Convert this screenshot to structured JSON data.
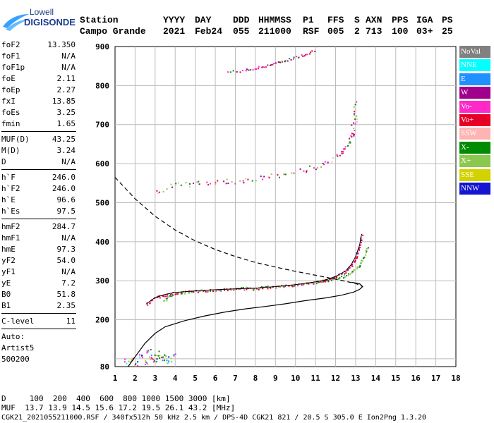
{
  "logo": {
    "line1": "Lowell",
    "line2": "DIGISONDE"
  },
  "header": {
    "labels": [
      "Station",
      "YYYY",
      "DAY",
      "DDD",
      "HHMMSS",
      "P1",
      "FFS",
      "S",
      "AXN",
      "PPS",
      "IGA",
      "PS"
    ],
    "values": [
      "Campo Grande",
      "2021",
      "Feb24",
      "055",
      "211000",
      "RSF",
      "005",
      "2",
      "713",
      "100",
      "03+",
      "25"
    ]
  },
  "params": {
    "g1": [
      {
        "name": "foF2",
        "value": "13.350"
      },
      {
        "name": "foF1",
        "value": "N/A"
      },
      {
        "name": "foF1p",
        "value": "N/A"
      },
      {
        "name": "foE",
        "value": "2.11"
      },
      {
        "name": "foEp",
        "value": "2.27"
      },
      {
        "name": "fxI",
        "value": "13.85"
      },
      {
        "name": "foEs",
        "value": "3.25"
      },
      {
        "name": "fmin",
        "value": "1.65"
      }
    ],
    "g2": [
      {
        "name": "MUF(D)",
        "value": "43.25"
      },
      {
        "name": "M(D)",
        "value": "3.24"
      },
      {
        "name": "D",
        "value": "N/A"
      }
    ],
    "g3": [
      {
        "name": "h`F",
        "value": "246.0"
      },
      {
        "name": "h`F2",
        "value": "246.0"
      },
      {
        "name": "h`E",
        "value": "96.6"
      },
      {
        "name": "h`Es",
        "value": "97.5"
      }
    ],
    "g4": [
      {
        "name": "hmF2",
        "value": "284.7"
      },
      {
        "name": "hmF1",
        "value": "N/A"
      },
      {
        "name": "hmE",
        "value": "97.3"
      },
      {
        "name": "yF2",
        "value": "54.0"
      },
      {
        "name": "yF1",
        "value": "N/A"
      },
      {
        "name": "yE",
        "value": "7.2"
      },
      {
        "name": "B0",
        "value": "51.8"
      },
      {
        "name": "B1",
        "value": "2.35"
      }
    ],
    "clevel": {
      "name": "C-level",
      "value": "11"
    },
    "auto": [
      "Auto:",
      "Artist5",
      "500200"
    ]
  },
  "legend": [
    {
      "label": "NoVal",
      "color": "#808080",
      "text": "#ffffff"
    },
    {
      "label": "NNE",
      "color": "#00ffff",
      "text": "#ffffff"
    },
    {
      "label": "E",
      "color": "#1e90ff",
      "text": "#ffffff"
    },
    {
      "label": "W",
      "color": "#a0008c",
      "text": "#ffffff"
    },
    {
      "label": "Vo-",
      "color": "#ff28c8",
      "text": "#ffffff"
    },
    {
      "label": "Vo+",
      "color": "#e60028",
      "text": "#ffffff"
    },
    {
      "label": "SSW",
      "color": "#ffb4b4",
      "text": "#ffffff"
    },
    {
      "label": "X-",
      "color": "#008c00",
      "text": "#ffffff"
    },
    {
      "label": "X+",
      "color": "#8cc850",
      "text": "#ffffff"
    },
    {
      "label": "SSE",
      "color": "#d2d200",
      "text": "#ffffff"
    },
    {
      "label": "NNW",
      "color": "#1414d2",
      "text": "#ffffff"
    }
  ],
  "footer": {
    "line1": "D     100  200  400  600  800 1000 1500 3000 [km]",
    "line2": "MUF  13.7 13.9 14.5 15.6 17.2 19.5 26.1 43.2 [MHz]",
    "line3": "CGK21_2021055211000.RSF / 340fx512h 50 kHz 2.5 km / DPS-4D CGK21 821 / 20.5 S 305.0 E Ion2Png 1.3.20"
  },
  "chart_data": {
    "type": "scatter",
    "xlim": [
      1,
      18
    ],
    "ylim": [
      80,
      900
    ],
    "x_ticks": [
      1,
      2,
      3,
      4,
      5,
      6,
      7,
      8,
      9,
      10,
      11,
      12,
      13,
      14,
      15,
      16,
      17,
      18
    ],
    "y_ticks": [
      80,
      200,
      300,
      400,
      500,
      600,
      700,
      800,
      900
    ],
    "grid": true,
    "profile_curve": [
      [
        1.65,
        80
      ],
      [
        2.0,
        105
      ],
      [
        2.5,
        140
      ],
      [
        3.0,
        165
      ],
      [
        3.5,
        182
      ],
      [
        4.5,
        198
      ],
      [
        5.5,
        210
      ],
      [
        6.5,
        220
      ],
      [
        7.5,
        228
      ],
      [
        8.5,
        234
      ],
      [
        9.5,
        241
      ],
      [
        10.5,
        249
      ],
      [
        11.5,
        256
      ],
      [
        12.3,
        263
      ],
      [
        12.9,
        271
      ],
      [
        13.2,
        278
      ],
      [
        13.35,
        285
      ],
      [
        13.2,
        292
      ],
      [
        12.8,
        296
      ]
    ],
    "extrapolated_curve": [
      [
        1.0,
        565
      ],
      [
        2.0,
        510
      ],
      [
        3.0,
        465
      ],
      [
        4.0,
        430
      ],
      [
        5.0,
        402
      ],
      [
        6.0,
        380
      ],
      [
        7.0,
        362
      ],
      [
        8.0,
        347
      ],
      [
        9.0,
        335
      ],
      [
        10.0,
        324
      ],
      [
        11.0,
        314
      ],
      [
        12.0,
        304
      ],
      [
        13.0,
        293
      ],
      [
        13.35,
        285
      ]
    ],
    "o_trace": [
      [
        2.55,
        240
      ],
      [
        3.0,
        257
      ],
      [
        3.5,
        265
      ],
      [
        4.0,
        270
      ],
      [
        5.0,
        274
      ],
      [
        6.0,
        277
      ],
      [
        7.0,
        279
      ],
      [
        8.0,
        281
      ],
      [
        9.0,
        285
      ],
      [
        10.0,
        290
      ],
      [
        11.0,
        297
      ],
      [
        11.5,
        302
      ],
      [
        12.0,
        311
      ],
      [
        12.5,
        325
      ],
      [
        12.8,
        343
      ],
      [
        13.0,
        362
      ],
      [
        13.2,
        392
      ],
      [
        13.3,
        420
      ]
    ],
    "x_trace": [
      [
        3.4,
        250
      ],
      [
        3.8,
        265
      ],
      [
        4.5,
        272
      ],
      [
        5.5,
        276
      ],
      [
        6.5,
        279
      ],
      [
        7.5,
        282
      ],
      [
        8.5,
        285
      ],
      [
        9.5,
        289
      ],
      [
        10.5,
        294
      ],
      [
        11.5,
        301
      ],
      [
        12.2,
        309
      ],
      [
        12.7,
        320
      ],
      [
        13.1,
        337
      ],
      [
        13.4,
        360
      ],
      [
        13.6,
        390
      ]
    ],
    "o_second_hop": [
      [
        3.0,
        530
      ],
      [
        4.0,
        545
      ],
      [
        5.0,
        550
      ],
      [
        6.0,
        554
      ],
      [
        7.0,
        557
      ],
      [
        8.0,
        562
      ],
      [
        9.0,
        570
      ],
      [
        10.0,
        580
      ],
      [
        11.0,
        592
      ],
      [
        11.8,
        610
      ],
      [
        12.3,
        630
      ],
      [
        12.6,
        650
      ],
      [
        12.8,
        675
      ],
      [
        12.9,
        700
      ],
      [
        13.0,
        730
      ],
      [
        13.05,
        765
      ]
    ],
    "third_hop": [
      [
        6.6,
        836
      ],
      [
        7.5,
        840
      ],
      [
        8.0,
        845
      ],
      [
        8.5,
        852
      ],
      [
        9.0,
        858
      ],
      [
        9.5,
        866
      ],
      [
        10.0,
        874
      ],
      [
        10.5,
        882
      ],
      [
        11.0,
        892
      ]
    ],
    "es_cluster": [
      [
        1.6,
        95
      ],
      [
        1.9,
        100
      ],
      [
        2.0,
        88
      ],
      [
        2.3,
        110
      ],
      [
        2.5,
        92
      ],
      [
        2.6,
        120
      ],
      [
        2.8,
        105
      ],
      [
        3.0,
        98
      ],
      [
        3.1,
        115
      ],
      [
        3.3,
        102
      ],
      [
        3.5,
        112
      ],
      [
        3.7,
        96
      ],
      [
        3.9,
        108
      ]
    ]
  }
}
